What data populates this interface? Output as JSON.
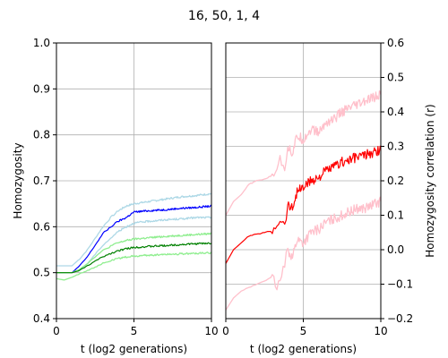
{
  "chart_data": [
    {
      "type": "line",
      "title": "16, 50, 1, 4",
      "xlabel": "t (log2 generations)",
      "ylabel": "Homozygosity",
      "xlim": [
        0,
        10
      ],
      "ylim": [
        0.4,
        1.0
      ],
      "xticks": [
        "0",
        "5",
        "10"
      ],
      "yticks": [
        "0.4",
        "0.5",
        "0.6",
        "0.7",
        "0.8",
        "0.9",
        "1.0"
      ],
      "grid": true,
      "series": [
        {
          "color": "#add8e6",
          "x": [
            0,
            1,
            1.5,
            2,
            2.5,
            3,
            3.5,
            4,
            4.5,
            5,
            6,
            7,
            8,
            9,
            10
          ],
          "y": [
            0.515,
            0.515,
            0.53,
            0.55,
            0.575,
            0.6,
            0.62,
            0.635,
            0.645,
            0.65,
            0.655,
            0.66,
            0.665,
            0.668,
            0.672
          ]
        },
        {
          "color": "#0000ff",
          "x": [
            0,
            1,
            1.5,
            2,
            2.5,
            3,
            3.5,
            4,
            4.5,
            5,
            6,
            7,
            8,
            9,
            10
          ],
          "y": [
            0.5,
            0.5,
            0.515,
            0.535,
            0.56,
            0.585,
            0.6,
            0.612,
            0.62,
            0.632,
            0.635,
            0.637,
            0.64,
            0.642,
            0.645
          ]
        },
        {
          "color": "#add8e6",
          "x": [
            0,
            1,
            1.5,
            2,
            2.5,
            3,
            3.5,
            4,
            4.5,
            5,
            6,
            7,
            8,
            9,
            10
          ],
          "y": [
            0.5,
            0.5,
            0.505,
            0.52,
            0.54,
            0.56,
            0.575,
            0.59,
            0.6,
            0.608,
            0.612,
            0.615,
            0.617,
            0.62,
            0.62
          ]
        },
        {
          "color": "#90ee90",
          "x": [
            0,
            1,
            1.5,
            2,
            2.5,
            3,
            3.5,
            4,
            4.5,
            5,
            6,
            7,
            8,
            9,
            10
          ],
          "y": [
            0.5,
            0.5,
            0.508,
            0.52,
            0.535,
            0.548,
            0.558,
            0.565,
            0.57,
            0.573,
            0.576,
            0.579,
            0.581,
            0.583,
            0.585
          ]
        },
        {
          "color": "#008000",
          "x": [
            0,
            1,
            1.5,
            2,
            2.5,
            3,
            3.5,
            4,
            4.5,
            5,
            6,
            7,
            8,
            9,
            10
          ],
          "y": [
            0.5,
            0.5,
            0.505,
            0.515,
            0.525,
            0.535,
            0.542,
            0.548,
            0.552,
            0.555,
            0.557,
            0.559,
            0.561,
            0.563,
            0.564
          ]
        },
        {
          "color": "#90ee90",
          "x": [
            0,
            0.5,
            1,
            1.5,
            2,
            2.5,
            3,
            3.5,
            4,
            4.5,
            5,
            6,
            7,
            8,
            9,
            10
          ],
          "y": [
            0.487,
            0.484,
            0.49,
            0.498,
            0.505,
            0.512,
            0.52,
            0.526,
            0.531,
            0.534,
            0.536,
            0.538,
            0.54,
            0.541,
            0.542,
            0.543
          ]
        }
      ]
    },
    {
      "type": "line",
      "xlabel": "t (log2 generations)",
      "ylabel": "Homozygosity correlation (r)",
      "xlim": [
        0,
        10
      ],
      "ylim": [
        -0.2,
        0.6
      ],
      "xticks": [
        "0",
        "5",
        "10"
      ],
      "yticks": [
        "−0.2",
        "−0.1",
        "0.0",
        "0.1",
        "0.2",
        "0.3",
        "0.4",
        "0.5",
        "0.6"
      ],
      "grid": true,
      "series": [
        {
          "color": "#ffc0cb",
          "x": [
            0,
            0.5,
            1,
            1.5,
            2,
            2.5,
            3,
            3.5,
            3.8,
            4,
            4.3,
            4.6,
            5,
            5.5,
            6,
            6.5,
            7,
            7.5,
            8,
            8.5,
            9,
            9.5,
            10
          ],
          "y": [
            0.1,
            0.14,
            0.16,
            0.19,
            0.2,
            0.205,
            0.215,
            0.26,
            0.24,
            0.3,
            0.28,
            0.33,
            0.32,
            0.35,
            0.34,
            0.37,
            0.38,
            0.4,
            0.41,
            0.42,
            0.43,
            0.44,
            0.45
          ]
        },
        {
          "color": "#ff0000",
          "x": [
            0,
            0.5,
            1,
            1.5,
            2,
            2.5,
            3,
            3.5,
            3.8,
            4,
            4.3,
            4.6,
            5,
            5.5,
            6,
            6.5,
            7,
            7.5,
            8,
            8.5,
            9,
            9.5,
            10
          ],
          "y": [
            -0.04,
            0.0,
            0.02,
            0.04,
            0.045,
            0.05,
            0.055,
            0.09,
            0.07,
            0.13,
            0.12,
            0.17,
            0.18,
            0.2,
            0.21,
            0.23,
            0.24,
            0.255,
            0.26,
            0.27,
            0.275,
            0.28,
            0.29
          ]
        },
        {
          "color": "#ffc0cb",
          "x": [
            0,
            0.5,
            1,
            1.5,
            2,
            2.5,
            3,
            3.3,
            3.6,
            4,
            4.3,
            4.6,
            5,
            5.5,
            6,
            6.5,
            7,
            7.5,
            8,
            8.5,
            9,
            9.5,
            10
          ],
          "y": [
            -0.175,
            -0.14,
            -0.12,
            -0.11,
            -0.1,
            -0.09,
            -0.08,
            -0.11,
            -0.08,
            0.0,
            -0.02,
            0.03,
            0.02,
            0.05,
            0.06,
            0.08,
            0.09,
            0.1,
            0.11,
            0.12,
            0.12,
            0.13,
            0.14
          ]
        }
      ]
    }
  ]
}
